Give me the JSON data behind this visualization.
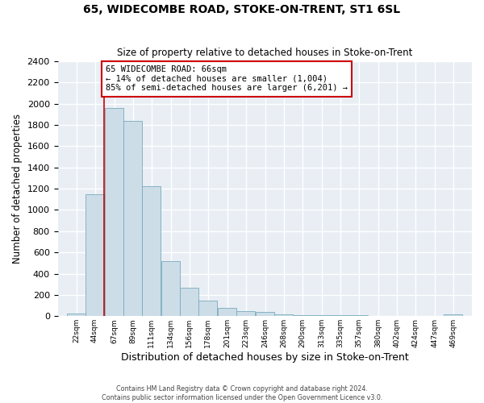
{
  "title": "65, WIDECOMBE ROAD, STOKE-ON-TRENT, ST1 6SL",
  "subtitle": "Size of property relative to detached houses in Stoke-on-Trent",
  "xlabel": "Distribution of detached houses by size in Stoke-on-Trent",
  "ylabel": "Number of detached properties",
  "bin_labels": [
    "22sqm",
    "44sqm",
    "67sqm",
    "89sqm",
    "111sqm",
    "134sqm",
    "156sqm",
    "178sqm",
    "201sqm",
    "223sqm",
    "246sqm",
    "268sqm",
    "290sqm",
    "313sqm",
    "335sqm",
    "357sqm",
    "380sqm",
    "402sqm",
    "424sqm",
    "447sqm",
    "469sqm"
  ],
  "bin_edges": [
    22,
    44,
    67,
    89,
    111,
    134,
    156,
    178,
    201,
    223,
    246,
    268,
    290,
    313,
    335,
    357,
    380,
    402,
    424,
    447,
    469
  ],
  "bar_heights": [
    25,
    1150,
    1960,
    1840,
    1220,
    520,
    265,
    150,
    78,
    50,
    38,
    18,
    10,
    13,
    10,
    8,
    5,
    5,
    3,
    2,
    15
  ],
  "bar_color": "#ccdde8",
  "bar_edge_color": "#7aaabb",
  "property_size": 66,
  "property_line_color": "#cc0000",
  "annotation_text": "65 WIDECOMBE ROAD: 66sqm\n← 14% of detached houses are smaller (1,004)\n85% of semi-detached houses are larger (6,201) →",
  "annotation_box_color": "#ffffff",
  "annotation_box_edge": "#cc0000",
  "ylim": [
    0,
    2400
  ],
  "yticks": [
    0,
    200,
    400,
    600,
    800,
    1000,
    1200,
    1400,
    1600,
    1800,
    2000,
    2200,
    2400
  ],
  "footer_line1": "Contains HM Land Registry data © Crown copyright and database right 2024.",
  "footer_line2": "Contains public sector information licensed under the Open Government Licence v3.0.",
  "background_color": "#ffffff",
  "plot_bg_color": "#e8eef4",
  "grid_color": "#ffffff"
}
